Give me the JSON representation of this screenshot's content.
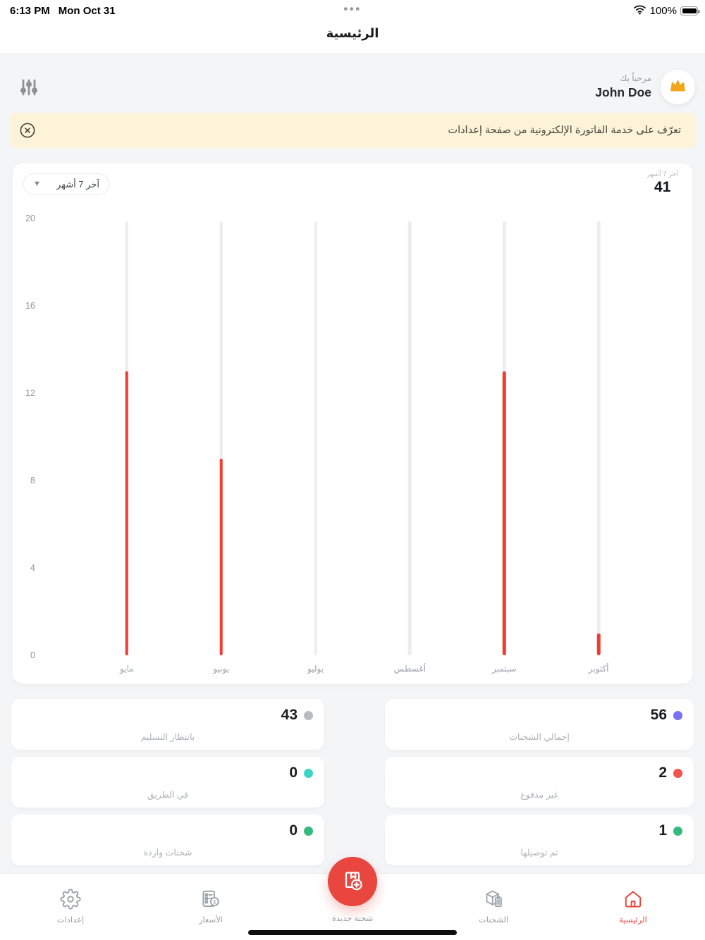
{
  "status_bar": {
    "time": "6:13 PM",
    "date": "Mon Oct 31",
    "battery": "100%",
    "app_switcher_dots": "•••"
  },
  "nav": {
    "title": "الرئيسية"
  },
  "header": {
    "greeting": "مرحباً بك",
    "user_name": "John Doe"
  },
  "banner": {
    "text": "تعرّف على خدمة الفاتورة الإلكترونية من صفحة إعدادات"
  },
  "chart": {
    "period_selector_label": "آخر 7 أشهر",
    "summary_label": "آخر 7 أشهر",
    "summary_value": "41"
  },
  "chart_data": {
    "type": "bar",
    "title": "",
    "categories": [
      "مايو",
      "يونيو",
      "يوليو",
      "أغسطس",
      "سبتمبر",
      "أكتوبر"
    ],
    "values": [
      13,
      9,
      0,
      0,
      13,
      1
    ],
    "ylim": [
      0,
      20
    ],
    "yticks": [
      0,
      4,
      8,
      12,
      16,
      20
    ],
    "bar_color": "#f13c31",
    "track_color": "#ededed",
    "grid": false,
    "legend": "none"
  },
  "stats": {
    "right_column": [
      {
        "value": "56",
        "label": "إجمالي الشحنات",
        "dot_color": "#7a6ff0"
      },
      {
        "value": "2",
        "label": "غير مدفوع",
        "dot_color": "#f0544c"
      },
      {
        "value": "1",
        "label": "تم توصيلها",
        "dot_color": "#35b97e"
      }
    ],
    "left_column": [
      {
        "value": "43",
        "label": "بانتظار التسليم",
        "dot_color": "#b8bcbf"
      },
      {
        "value": "0",
        "label": "في الطريق",
        "dot_color": "#3cd5c5"
      },
      {
        "value": "0",
        "label": "شحنات واردة",
        "dot_color": "#35b97e"
      }
    ]
  },
  "tab_bar": {
    "items": [
      {
        "label": "إعدادات",
        "icon": "gear-icon",
        "active": false
      },
      {
        "label": "الأسعار",
        "icon": "price-list-icon",
        "active": false
      },
      {
        "label": "شحنة جديدة",
        "icon": "new-shipment-icon",
        "active": false
      },
      {
        "label": "الشحنات",
        "icon": "shipments-icon",
        "active": false
      },
      {
        "label": "الرئيسية",
        "icon": "home-icon",
        "active": true
      }
    ]
  },
  "colors": {
    "accent_red": "#e8463e",
    "bar_red": "#f13c31",
    "banner_bg": "#fcf3d8",
    "crown_gold": "#f2a71b",
    "page_bg": "#f3f5f7"
  }
}
